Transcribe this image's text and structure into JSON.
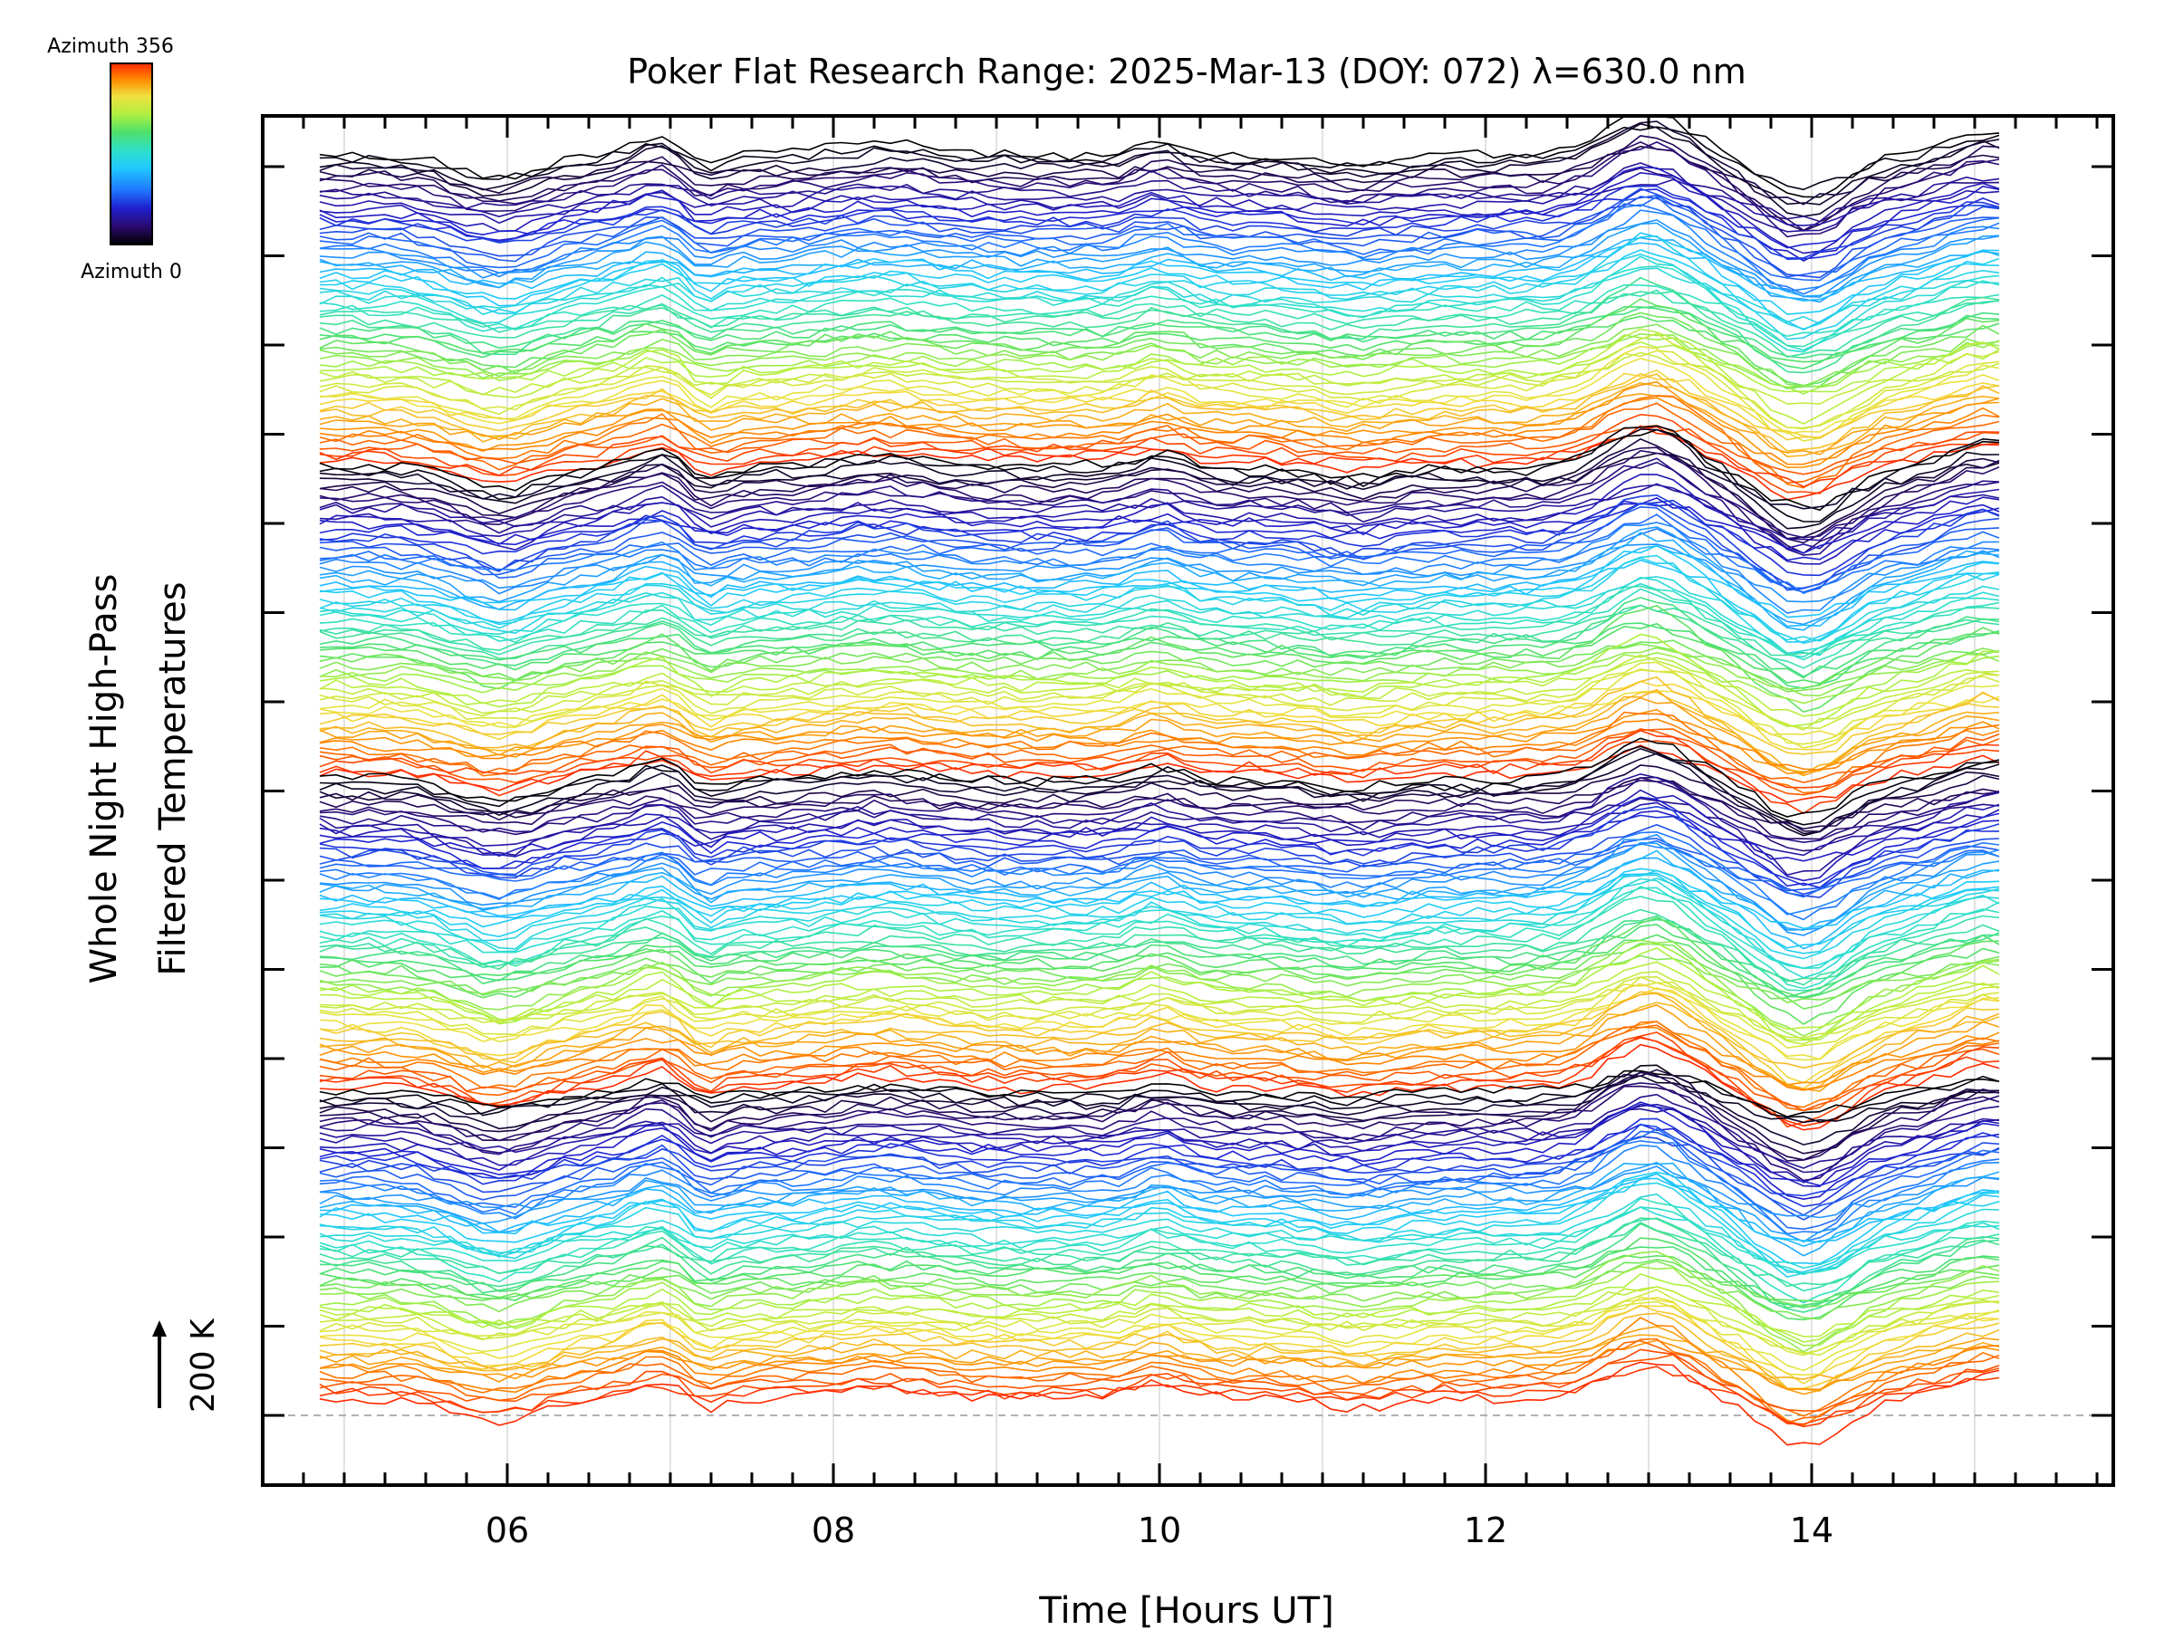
{
  "chart_data": {
    "type": "line",
    "title": "Poker Flat Research Range: 2025-Mar-13 (DOY: 072) λ=630.0 nm",
    "xlabel": "Time [Hours UT]",
    "ylabel_line1": "Whole Night High-Pass",
    "ylabel_line2": "Filtered Temperatures",
    "xlim": [
      4.5,
      15.85
    ],
    "x_ticks": [
      6,
      8,
      10,
      12,
      14
    ],
    "x_tick_labels": [
      "06",
      "08",
      "10",
      "12",
      "14"
    ],
    "x_start": 4.85,
    "x_end": 15.15,
    "sample_step_hours": 0.1,
    "scale_label": "200 K",
    "scale_arrow": "↑",
    "colorbar": {
      "top_label": "Azimuth 356",
      "bottom_label": "Azimuth 0",
      "colormap": [
        "#000000",
        "#2a0a6e",
        "#1f1fcf",
        "#1f77ff",
        "#1fc8ff",
        "#2fe0c8",
        "#4fe06a",
        "#b0f040",
        "#f0e040",
        "#ff8a00",
        "#ff2a00"
      ]
    },
    "series_count": 256,
    "series_colors_by_azimuth": true,
    "baseline_guide": "dashed"
  }
}
